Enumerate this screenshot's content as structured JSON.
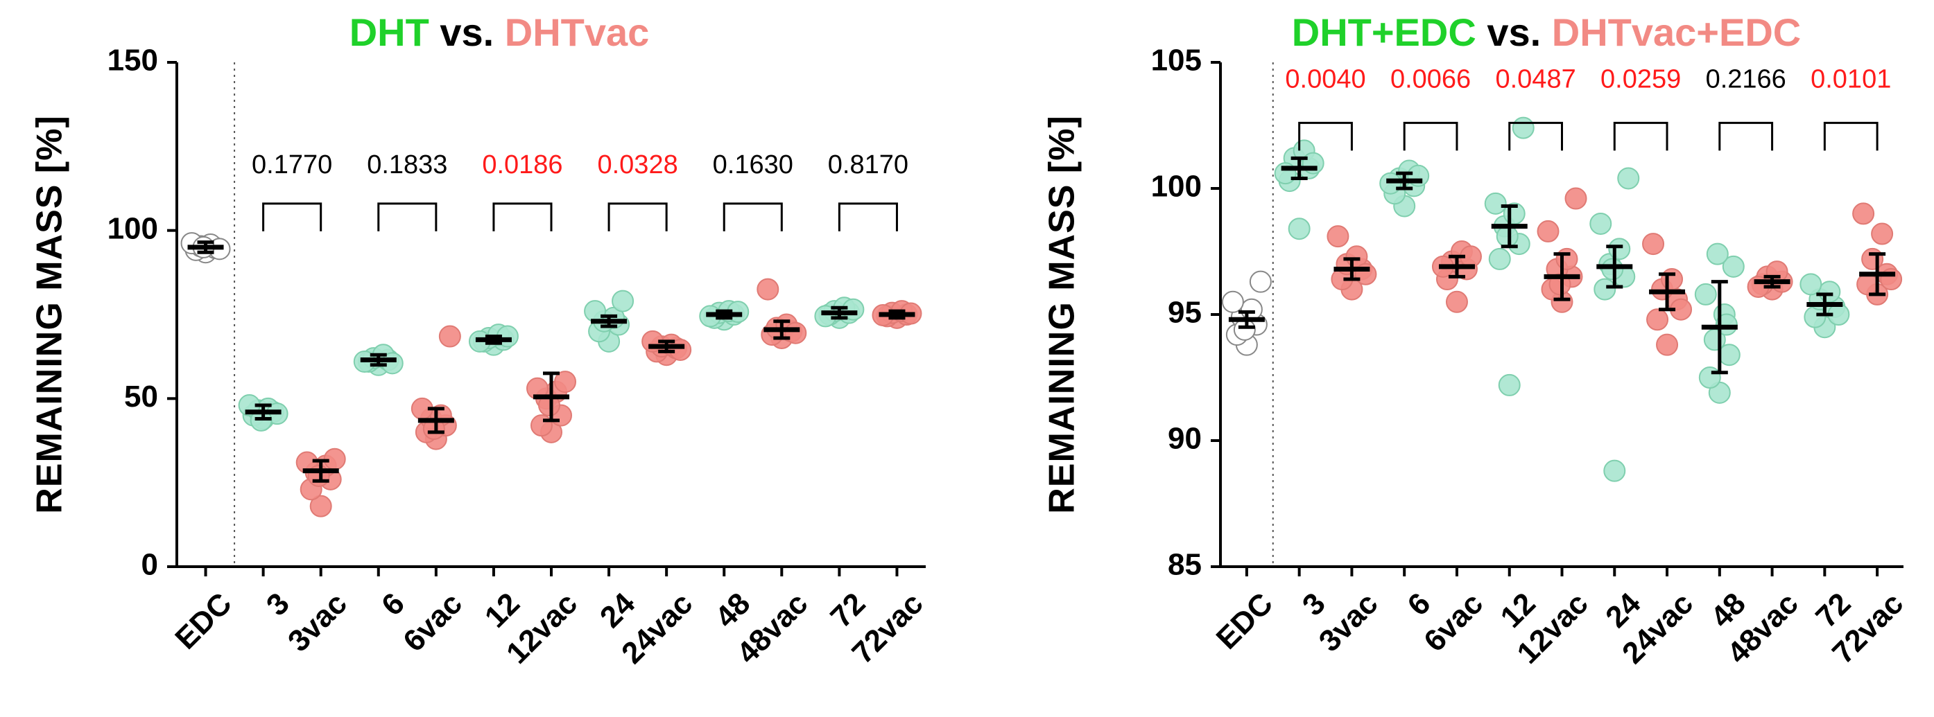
{
  "chart_data": [
    {
      "type": "scatter",
      "title_parts": [
        {
          "text": "DHT",
          "color": "#1fd12a"
        },
        {
          "text": " vs. ",
          "color": "#000000"
        },
        {
          "text": "DHTvac",
          "color": "#f28a84"
        }
      ],
      "title": "DHT vs. DHTvac",
      "ylabel": "REMAINING MASS [%]",
      "ylim": [
        0,
        150
      ],
      "yticks": [
        0,
        50,
        100,
        150
      ],
      "categories": [
        "EDC",
        "3",
        "3vac",
        "6",
        "6vac",
        "12",
        "12vac",
        "24",
        "24vac",
        "48",
        "48vac",
        "72",
        "72vac"
      ],
      "groups": [
        {
          "label": "EDC",
          "kind": "control",
          "mean": 95,
          "err": 1.5,
          "points": [
            93.5,
            94.2,
            94.8,
            95.3,
            95.8,
            96.2,
            94.5,
            95.0
          ]
        },
        {
          "label": "3",
          "kind": "dht",
          "mean": 46,
          "err": 2,
          "points": [
            44,
            45,
            46,
            46.5,
            47,
            48,
            45.5,
            43.5
          ]
        },
        {
          "label": "3vac",
          "kind": "vac",
          "mean": 28.5,
          "err": 3,
          "points": [
            18,
            23,
            26,
            28,
            30,
            31,
            32,
            27
          ]
        },
        {
          "label": "6",
          "kind": "dht",
          "mean": 61.5,
          "err": 1.5,
          "points": [
            60,
            61,
            61.5,
            62,
            63,
            61,
            60.5
          ]
        },
        {
          "label": "6vac",
          "kind": "vac",
          "mean": 43.5,
          "err": 3.5,
          "points": [
            38,
            40,
            42,
            44,
            45,
            47,
            68.5,
            41
          ]
        },
        {
          "label": "12",
          "kind": "dht",
          "mean": 67.5,
          "err": 1,
          "points": [
            66,
            67,
            67.5,
            68,
            69,
            67,
            68.5
          ]
        },
        {
          "label": "12vac",
          "kind": "vac",
          "mean": 50.5,
          "err": 7,
          "points": [
            40,
            42,
            45,
            50,
            52,
            53,
            55,
            48
          ]
        },
        {
          "label": "24",
          "kind": "dht",
          "mean": 73,
          "err": 1.5,
          "points": [
            67,
            70,
            72,
            73,
            74,
            76,
            79
          ]
        },
        {
          "label": "24vac",
          "kind": "vac",
          "mean": 65.5,
          "err": 1.5,
          "points": [
            63,
            64,
            65,
            65.5,
            66,
            67,
            64.5
          ]
        },
        {
          "label": "48",
          "kind": "dht",
          "mean": 75,
          "err": 1,
          "points": [
            73.5,
            74,
            75,
            75.5,
            76,
            74.5,
            75.8
          ]
        },
        {
          "label": "48vac",
          "kind": "vac",
          "mean": 70.5,
          "err": 2.5,
          "points": [
            68,
            69,
            70,
            71,
            72,
            82.5,
            69.5
          ]
        },
        {
          "label": "72",
          "kind": "dht",
          "mean": 75.5,
          "err": 1.5,
          "points": [
            74,
            75,
            75.5,
            76,
            77,
            74.5,
            76.5
          ]
        },
        {
          "label": "72vac",
          "kind": "vac",
          "mean": 75,
          "err": 1,
          "points": [
            74,
            74.5,
            75,
            75.5,
            76,
            74.8,
            75.3
          ]
        }
      ],
      "comparisons": [
        {
          "pair": [
            "3",
            "3vac"
          ],
          "p": "0.1770",
          "significant": false
        },
        {
          "pair": [
            "6",
            "6vac"
          ],
          "p": "0.1833",
          "significant": false
        },
        {
          "pair": [
            "12",
            "12vac"
          ],
          "p": "0.0186",
          "significant": true
        },
        {
          "pair": [
            "24",
            "24vac"
          ],
          "p": "0.0328",
          "significant": true
        },
        {
          "pair": [
            "48",
            "48vac"
          ],
          "p": "0.1630",
          "significant": false
        },
        {
          "pair": [
            "72",
            "72vac"
          ],
          "p": "0.8170",
          "significant": false
        }
      ],
      "bracket_y": 108,
      "pval_y": 117
    },
    {
      "type": "scatter",
      "title_parts": [
        {
          "text": "DHT+EDC",
          "color": "#1fd12a"
        },
        {
          "text": " vs. ",
          "color": "#000000"
        },
        {
          "text": "DHTvac+EDC",
          "color": "#f28a84"
        }
      ],
      "title": "DHT+EDC vs. DHTvac+EDC",
      "ylabel": "REMAINING MASS [%]",
      "ylim": [
        85,
        105
      ],
      "yticks": [
        85,
        90,
        95,
        100,
        105
      ],
      "categories": [
        "EDC",
        "3",
        "3vac",
        "6",
        "6vac",
        "12",
        "12vac",
        "24",
        "24vac",
        "48",
        "48vac",
        "72",
        "72vac"
      ],
      "groups": [
        {
          "label": "EDC",
          "kind": "control",
          "mean": 94.8,
          "err": 0.3,
          "points": [
            93.8,
            94.2,
            94.6,
            94.9,
            95.2,
            95.5,
            96.3,
            94.4
          ]
        },
        {
          "label": "3",
          "kind": "dht",
          "mean": 100.8,
          "err": 0.4,
          "points": [
            98.4,
            100.3,
            100.8,
            101.2,
            101.5,
            100.6,
            101.0
          ]
        },
        {
          "label": "3vac",
          "kind": "vac",
          "mean": 96.8,
          "err": 0.4,
          "points": [
            96.0,
            96.4,
            96.8,
            97.0,
            97.3,
            98.1,
            96.6
          ]
        },
        {
          "label": "6",
          "kind": "dht",
          "mean": 100.3,
          "err": 0.3,
          "points": [
            99.3,
            99.8,
            100.1,
            100.4,
            100.7,
            100.2,
            100.5
          ]
        },
        {
          "label": "6vac",
          "kind": "vac",
          "mean": 96.9,
          "err": 0.4,
          "points": [
            95.5,
            96.4,
            96.8,
            97.1,
            97.5,
            96.9,
            97.3
          ]
        },
        {
          "label": "12",
          "kind": "dht",
          "mean": 98.5,
          "err": 0.8,
          "points": [
            92.2,
            97.2,
            97.8,
            98.5,
            99.0,
            99.4,
            102.4,
            98.1
          ]
        },
        {
          "label": "12vac",
          "kind": "vac",
          "mean": 96.5,
          "err": 0.9,
          "points": [
            95.5,
            96.0,
            96.5,
            96.8,
            97.2,
            98.3,
            99.6,
            96.2
          ]
        },
        {
          "label": "24",
          "kind": "dht",
          "mean": 96.9,
          "err": 0.8,
          "points": [
            88.8,
            96.0,
            96.5,
            97.0,
            97.6,
            98.6,
            100.4,
            96.8
          ]
        },
        {
          "label": "24vac",
          "kind": "vac",
          "mean": 95.9,
          "err": 0.7,
          "points": [
            93.8,
            94.8,
            95.6,
            96.0,
            96.4,
            97.8,
            95.2
          ]
        },
        {
          "label": "48",
          "kind": "dht",
          "mean": 94.5,
          "err": 1.8,
          "points": [
            91.9,
            92.5,
            93.4,
            94.0,
            95.0,
            95.8,
            96.9,
            97.4,
            94.6
          ]
        },
        {
          "label": "48vac",
          "kind": "vac",
          "mean": 96.3,
          "err": 0.2,
          "points": [
            96.0,
            96.2,
            96.3,
            96.5,
            96.7,
            96.1
          ]
        },
        {
          "label": "72",
          "kind": "dht",
          "mean": 95.4,
          "err": 0.4,
          "points": [
            94.5,
            94.9,
            95.3,
            95.6,
            95.9,
            96.2,
            95.0
          ]
        },
        {
          "label": "72vac",
          "kind": "vac",
          "mean": 96.6,
          "err": 0.8,
          "points": [
            95.8,
            96.2,
            96.6,
            97.2,
            98.2,
            99.0,
            96.4
          ]
        }
      ],
      "comparisons": [
        {
          "pair": [
            "3",
            "3vac"
          ],
          "p": "0.0040",
          "significant": true
        },
        {
          "pair": [
            "6",
            "6vac"
          ],
          "p": "0.0066",
          "significant": true
        },
        {
          "pair": [
            "12",
            "12vac"
          ],
          "p": "0.0487",
          "significant": true
        },
        {
          "pair": [
            "24",
            "24vac"
          ],
          "p": "0.0259",
          "significant": true
        },
        {
          "pair": [
            "48",
            "48vac"
          ],
          "p": "0.2166",
          "significant": false
        },
        {
          "pair": [
            "72",
            "72vac"
          ],
          "p": "0.0101",
          "significant": true
        }
      ],
      "bracket_y": 102.6,
      "pval_y": 104.0
    }
  ],
  "colors": {
    "dht_fill": "#a8e6cf",
    "vac_fill": "#f28a84",
    "control_fill": "#ffffff",
    "marker_stroke": "#888888",
    "significant_text": "#ff1a1a",
    "normal_text": "#000000"
  }
}
